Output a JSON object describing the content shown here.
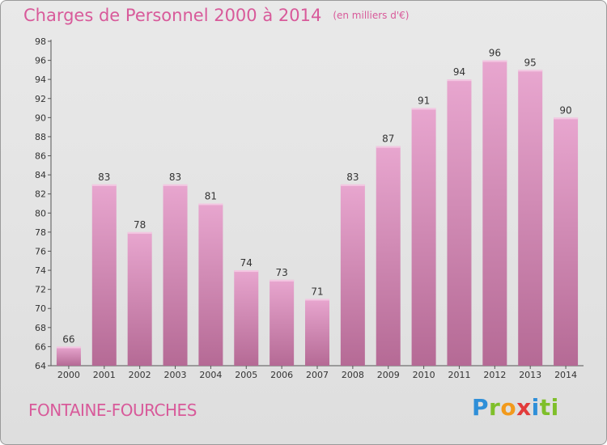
{
  "title": "Charges de Personnel 2000 à 2014",
  "unit_note": "(en milliers d'€)",
  "commune": "FONTAINE-FOURCHES",
  "logo": "Proxiti",
  "colors": {
    "title": "#d85a9a",
    "bar_top": "#e8a6cf",
    "bar_bottom": "#b56a95",
    "axis": "#555555"
  },
  "chart_data": {
    "type": "bar",
    "categories": [
      "2000",
      "2001",
      "2002",
      "2003",
      "2004",
      "2005",
      "2006",
      "2007",
      "2008",
      "2009",
      "2010",
      "2011",
      "2012",
      "2013",
      "2014"
    ],
    "values": [
      66,
      83,
      78,
      83,
      81,
      74,
      73,
      71,
      83,
      87,
      91,
      94,
      96,
      95,
      90
    ],
    "ylim": [
      64,
      98
    ],
    "yticks": [
      64,
      66,
      68,
      70,
      72,
      74,
      76,
      78,
      80,
      82,
      84,
      86,
      88,
      90,
      92,
      94,
      96,
      98
    ],
    "grid": false,
    "data_labels": true
  }
}
